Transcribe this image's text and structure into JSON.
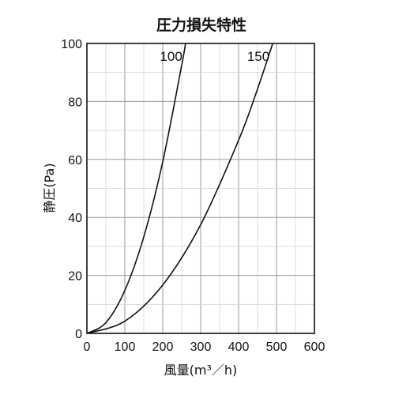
{
  "chart_data": {
    "type": "line",
    "title": "圧力損失特性",
    "xlabel": "風量(m³／h)",
    "ylabel": "静圧(Pa)",
    "xlim": [
      0,
      600
    ],
    "ylim": [
      0,
      100
    ],
    "x_ticks": [
      "0",
      "100",
      "200",
      "300",
      "400",
      "500",
      "600"
    ],
    "y_ticks": [
      "0",
      "20",
      "40",
      "60",
      "80",
      "100"
    ],
    "grid": true,
    "series": [
      {
        "name": "100",
        "x": [
          0,
          50,
          100,
          150,
          200,
          250,
          260
        ],
        "y": [
          0,
          3.7,
          14.8,
          33.3,
          59.2,
          92.5,
          100
        ]
      },
      {
        "name": "150",
        "x": [
          0,
          100,
          200,
          300,
          400,
          450,
          490
        ],
        "y": [
          0,
          4.2,
          16.7,
          37.5,
          66.6,
          84.3,
          100
        ]
      }
    ]
  }
}
